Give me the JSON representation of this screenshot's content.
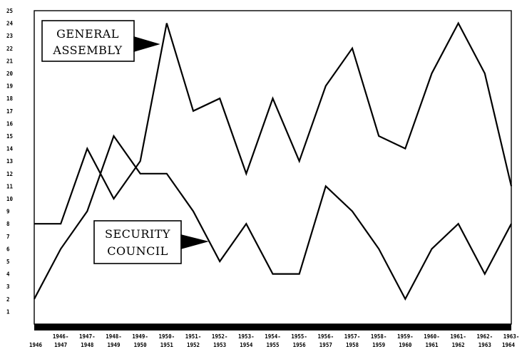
{
  "chart_data": {
    "type": "line",
    "categories": [
      "1946",
      "1946-1947",
      "1947-1948",
      "1948-1949",
      "1949-1950",
      "1950-1951",
      "1951-1952",
      "1952-1953",
      "1953-1954",
      "1954-1955",
      "1955-1956",
      "1956-1957",
      "1957-1958",
      "1958-1959",
      "1959-1960",
      "1960-1961",
      "1961-1962",
      "1962-1963",
      "1963-1964"
    ],
    "x_tick_labels": [
      {
        "top": "",
        "bottom": "1946"
      },
      {
        "top": "1946-",
        "bottom": "1947"
      },
      {
        "top": "1947-",
        "bottom": "1948"
      },
      {
        "top": "1948-",
        "bottom": "1949"
      },
      {
        "top": "1949-",
        "bottom": "1950"
      },
      {
        "top": "1950-",
        "bottom": "1951"
      },
      {
        "top": "1951-",
        "bottom": "1952"
      },
      {
        "top": "1952-",
        "bottom": "1953"
      },
      {
        "top": "1953-",
        "bottom": "1954"
      },
      {
        "top": "1954-",
        "bottom": "1955"
      },
      {
        "top": "1955-",
        "bottom": "1956"
      },
      {
        "top": "1956-",
        "bottom": "1957"
      },
      {
        "top": "1957-",
        "bottom": "1958"
      },
      {
        "top": "1958-",
        "bottom": "1959"
      },
      {
        "top": "1959-",
        "bottom": "1960"
      },
      {
        "top": "1960-",
        "bottom": "1961"
      },
      {
        "top": "1961-",
        "bottom": "1962"
      },
      {
        "top": "1962-",
        "bottom": "1963"
      },
      {
        "top": "1963-",
        "bottom": "1964"
      }
    ],
    "y_ticks": [
      1,
      2,
      3,
      4,
      5,
      6,
      7,
      8,
      9,
      10,
      11,
      12,
      13,
      14,
      15,
      16,
      17,
      18,
      19,
      20,
      21,
      22,
      23,
      24,
      25
    ],
    "ylim": [
      0,
      25
    ],
    "series": [
      {
        "name": "GENERAL ASSEMBLY",
        "label_lines": [
          "GENERAL",
          "ASSEMBLY"
        ],
        "values": [
          8,
          8,
          14,
          10,
          13,
          24,
          17,
          18,
          12,
          18,
          13,
          19,
          22,
          15,
          14,
          20,
          24,
          20,
          11
        ]
      },
      {
        "name": "SECURITY COUNCIL",
        "label_lines": [
          "SECURITY",
          "COUNCIL"
        ],
        "values": [
          2,
          6,
          9,
          15,
          12,
          12,
          9,
          5,
          8,
          4,
          4,
          11,
          9,
          6,
          2,
          6,
          8,
          4,
          8
        ]
      }
    ],
    "title": "",
    "xlabel": "",
    "ylabel": "",
    "grid": false,
    "legend": "callout labels inside plot",
    "line_color": "#000000"
  }
}
